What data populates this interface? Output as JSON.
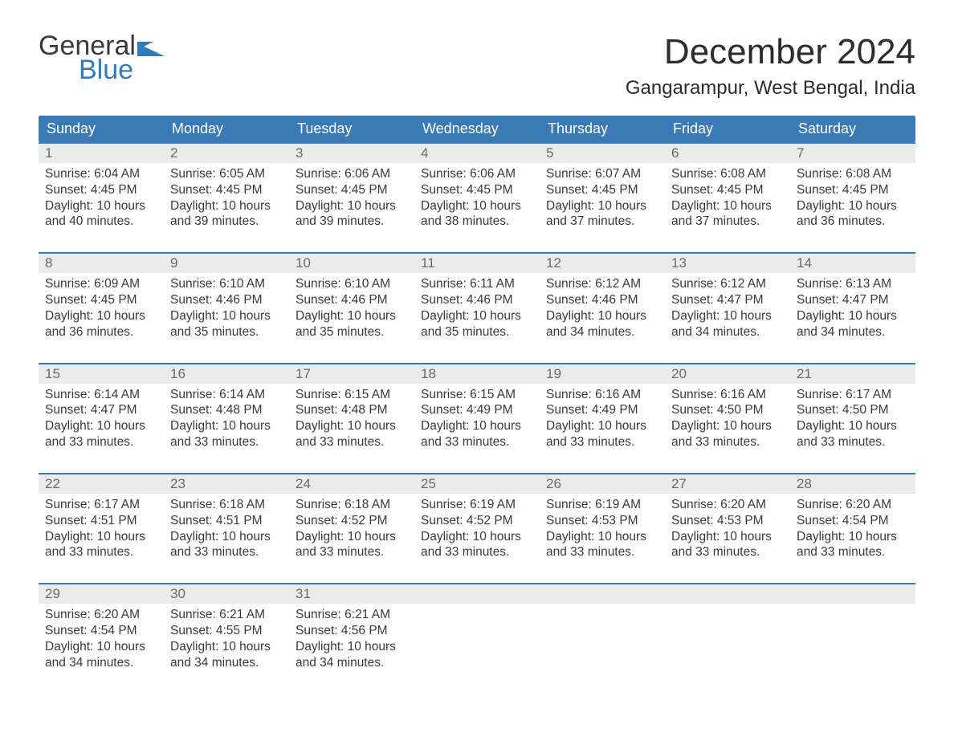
{
  "brand": {
    "line1": "General",
    "line2": "Blue"
  },
  "title": "December 2024",
  "location": "Gangarampur, West Bengal, India",
  "colors": {
    "header_bg": "#3c7ab6",
    "accent": "#2f7bbf",
    "day_bg": "#ebebeb",
    "text": "#3a3a3a",
    "page_bg": "#ffffff"
  },
  "weekdays": [
    "Sunday",
    "Monday",
    "Tuesday",
    "Wednesday",
    "Thursday",
    "Friday",
    "Saturday"
  ],
  "weeks": [
    [
      {
        "n": "1",
        "sunrise": "6:04 AM",
        "sunset": "4:45 PM",
        "daylight": "10 hours and 40 minutes."
      },
      {
        "n": "2",
        "sunrise": "6:05 AM",
        "sunset": "4:45 PM",
        "daylight": "10 hours and 39 minutes."
      },
      {
        "n": "3",
        "sunrise": "6:06 AM",
        "sunset": "4:45 PM",
        "daylight": "10 hours and 39 minutes."
      },
      {
        "n": "4",
        "sunrise": "6:06 AM",
        "sunset": "4:45 PM",
        "daylight": "10 hours and 38 minutes."
      },
      {
        "n": "5",
        "sunrise": "6:07 AM",
        "sunset": "4:45 PM",
        "daylight": "10 hours and 37 minutes."
      },
      {
        "n": "6",
        "sunrise": "6:08 AM",
        "sunset": "4:45 PM",
        "daylight": "10 hours and 37 minutes."
      },
      {
        "n": "7",
        "sunrise": "6:08 AM",
        "sunset": "4:45 PM",
        "daylight": "10 hours and 36 minutes."
      }
    ],
    [
      {
        "n": "8",
        "sunrise": "6:09 AM",
        "sunset": "4:45 PM",
        "daylight": "10 hours and 36 minutes."
      },
      {
        "n": "9",
        "sunrise": "6:10 AM",
        "sunset": "4:46 PM",
        "daylight": "10 hours and 35 minutes."
      },
      {
        "n": "10",
        "sunrise": "6:10 AM",
        "sunset": "4:46 PM",
        "daylight": "10 hours and 35 minutes."
      },
      {
        "n": "11",
        "sunrise": "6:11 AM",
        "sunset": "4:46 PM",
        "daylight": "10 hours and 35 minutes."
      },
      {
        "n": "12",
        "sunrise": "6:12 AM",
        "sunset": "4:46 PM",
        "daylight": "10 hours and 34 minutes."
      },
      {
        "n": "13",
        "sunrise": "6:12 AM",
        "sunset": "4:47 PM",
        "daylight": "10 hours and 34 minutes."
      },
      {
        "n": "14",
        "sunrise": "6:13 AM",
        "sunset": "4:47 PM",
        "daylight": "10 hours and 34 minutes."
      }
    ],
    [
      {
        "n": "15",
        "sunrise": "6:14 AM",
        "sunset": "4:47 PM",
        "daylight": "10 hours and 33 minutes."
      },
      {
        "n": "16",
        "sunrise": "6:14 AM",
        "sunset": "4:48 PM",
        "daylight": "10 hours and 33 minutes."
      },
      {
        "n": "17",
        "sunrise": "6:15 AM",
        "sunset": "4:48 PM",
        "daylight": "10 hours and 33 minutes."
      },
      {
        "n": "18",
        "sunrise": "6:15 AM",
        "sunset": "4:49 PM",
        "daylight": "10 hours and 33 minutes."
      },
      {
        "n": "19",
        "sunrise": "6:16 AM",
        "sunset": "4:49 PM",
        "daylight": "10 hours and 33 minutes."
      },
      {
        "n": "20",
        "sunrise": "6:16 AM",
        "sunset": "4:50 PM",
        "daylight": "10 hours and 33 minutes."
      },
      {
        "n": "21",
        "sunrise": "6:17 AM",
        "sunset": "4:50 PM",
        "daylight": "10 hours and 33 minutes."
      }
    ],
    [
      {
        "n": "22",
        "sunrise": "6:17 AM",
        "sunset": "4:51 PM",
        "daylight": "10 hours and 33 minutes."
      },
      {
        "n": "23",
        "sunrise": "6:18 AM",
        "sunset": "4:51 PM",
        "daylight": "10 hours and 33 minutes."
      },
      {
        "n": "24",
        "sunrise": "6:18 AM",
        "sunset": "4:52 PM",
        "daylight": "10 hours and 33 minutes."
      },
      {
        "n": "25",
        "sunrise": "6:19 AM",
        "sunset": "4:52 PM",
        "daylight": "10 hours and 33 minutes."
      },
      {
        "n": "26",
        "sunrise": "6:19 AM",
        "sunset": "4:53 PM",
        "daylight": "10 hours and 33 minutes."
      },
      {
        "n": "27",
        "sunrise": "6:20 AM",
        "sunset": "4:53 PM",
        "daylight": "10 hours and 33 minutes."
      },
      {
        "n": "28",
        "sunrise": "6:20 AM",
        "sunset": "4:54 PM",
        "daylight": "10 hours and 33 minutes."
      }
    ],
    [
      {
        "n": "29",
        "sunrise": "6:20 AM",
        "sunset": "4:54 PM",
        "daylight": "10 hours and 34 minutes."
      },
      {
        "n": "30",
        "sunrise": "6:21 AM",
        "sunset": "4:55 PM",
        "daylight": "10 hours and 34 minutes."
      },
      {
        "n": "31",
        "sunrise": "6:21 AM",
        "sunset": "4:56 PM",
        "daylight": "10 hours and 34 minutes."
      },
      null,
      null,
      null,
      null
    ]
  ],
  "labels": {
    "sunrise_prefix": "Sunrise: ",
    "sunset_prefix": "Sunset: ",
    "daylight_prefix": "Daylight: "
  }
}
